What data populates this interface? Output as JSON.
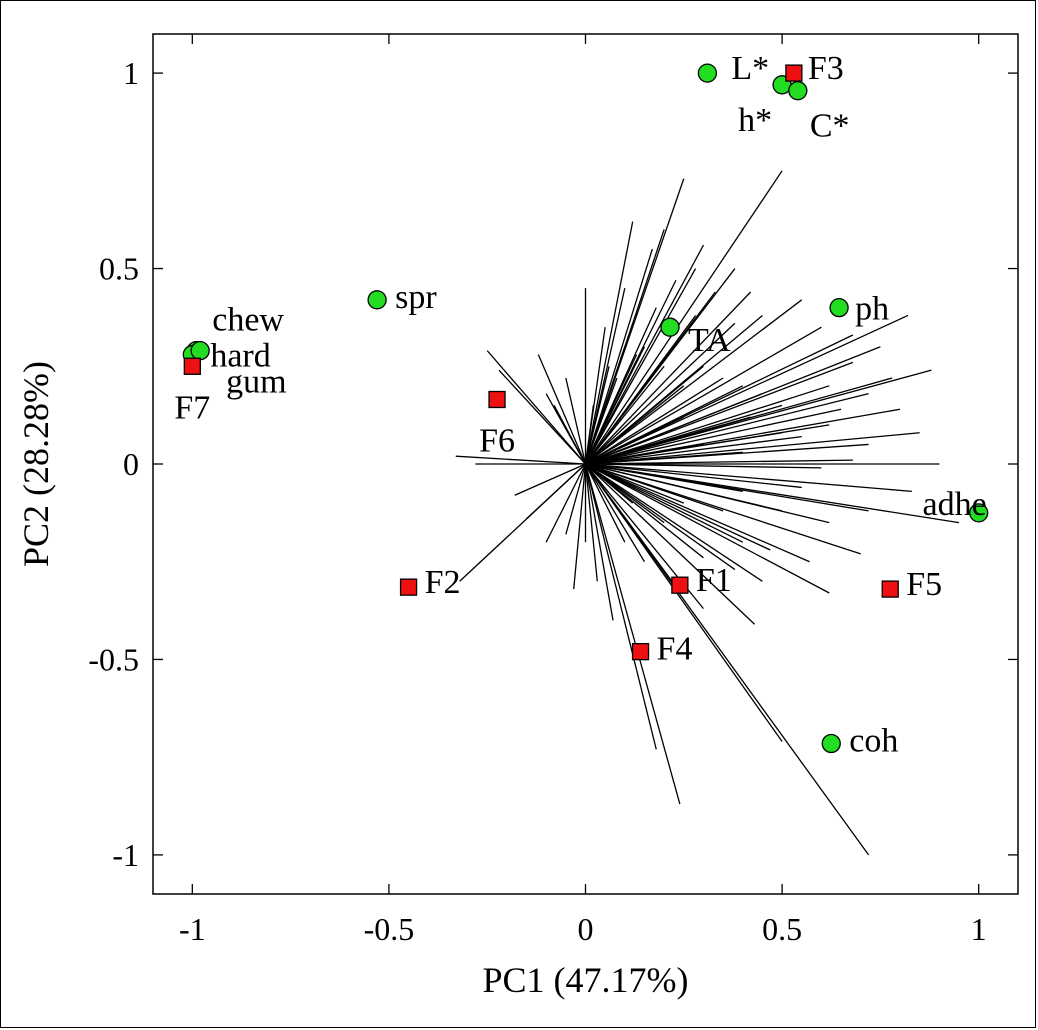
{
  "chart_data": {
    "type": "scatter",
    "title": "",
    "xlabel": "PC1 (47.17%)",
    "ylabel": "PC2 (28.28%)",
    "xlim": [
      -1.1,
      1.1
    ],
    "ylim": [
      -1.1,
      1.1
    ],
    "x_ticks": [
      -1,
      -0.5,
      0,
      0.5,
      1
    ],
    "x_tick_labels": [
      "-1",
      "-0.5",
      "0",
      "0.5",
      "1"
    ],
    "y_ticks": [
      -1,
      -0.5,
      0,
      0.5,
      1
    ],
    "y_tick_labels": [
      "-1",
      "-0.5",
      "0",
      "0.5",
      "1"
    ],
    "grid": false,
    "colors": {
      "variables": "#22dd22",
      "samples": "#ee1111",
      "loadings": "#000000"
    },
    "variables": [
      {
        "label": "L*",
        "x": 0.31,
        "y": 1.0
      },
      {
        "label": "h*",
        "x": 0.5,
        "y": 0.97
      },
      {
        "label": "C*",
        "x": 0.54,
        "y": 0.955
      },
      {
        "label": "ph",
        "x": 0.645,
        "y": 0.4
      },
      {
        "label": "TA",
        "x": 0.215,
        "y": 0.35
      },
      {
        "label": "spr",
        "x": -0.53,
        "y": 0.42
      },
      {
        "label": "chew",
        "x": -0.99,
        "y": 0.29
      },
      {
        "label": "hard",
        "x": -1.0,
        "y": 0.28
      },
      {
        "label": "gum",
        "x": -0.98,
        "y": 0.29
      },
      {
        "label": "adhe",
        "x": 1.0,
        "y": -0.125
      },
      {
        "label": "coh",
        "x": 0.625,
        "y": -0.715
      }
    ],
    "samples": [
      {
        "label": "F1",
        "x": 0.24,
        "y": -0.31
      },
      {
        "label": "F2",
        "x": -0.45,
        "y": -0.315
      },
      {
        "label": "F3",
        "x": 0.53,
        "y": 1.0
      },
      {
        "label": "F4",
        "x": 0.14,
        "y": -0.48
      },
      {
        "label": "F5",
        "x": 0.775,
        "y": -0.32
      },
      {
        "label": "F6",
        "x": -0.225,
        "y": 0.165
      },
      {
        "label": "F7",
        "x": -1.0,
        "y": 0.25
      }
    ],
    "loadings": [
      [
        0.25,
        0.73
      ],
      [
        0.5,
        0.75
      ],
      [
        0.2,
        0.6
      ],
      [
        0.17,
        0.55
      ],
      [
        0.12,
        0.62
      ],
      [
        0.3,
        0.56
      ],
      [
        0.38,
        0.5
      ],
      [
        0.28,
        0.5
      ],
      [
        0.1,
        0.45
      ],
      [
        0.23,
        0.47
      ],
      [
        0.33,
        0.44
      ],
      [
        0.42,
        0.44
      ],
      [
        0.18,
        0.4
      ],
      [
        0.05,
        0.35
      ],
      [
        0.0,
        0.45
      ],
      [
        0.28,
        0.38
      ],
      [
        0.38,
        0.36
      ],
      [
        0.45,
        0.38
      ],
      [
        0.55,
        0.42
      ],
      [
        0.6,
        0.35
      ],
      [
        0.68,
        0.33
      ],
      [
        0.82,
        0.38
      ],
      [
        0.75,
        0.3
      ],
      [
        0.68,
        0.26
      ],
      [
        0.78,
        0.22
      ],
      [
        0.88,
        0.24
      ],
      [
        0.62,
        0.2
      ],
      [
        0.72,
        0.18
      ],
      [
        0.65,
        0.14
      ],
      [
        0.8,
        0.14
      ],
      [
        0.85,
        0.08
      ],
      [
        0.62,
        0.1
      ],
      [
        0.55,
        0.07
      ],
      [
        0.72,
        0.05
      ],
      [
        0.68,
        0.01
      ],
      [
        0.9,
        0.0
      ],
      [
        0.6,
        -0.01
      ],
      [
        0.83,
        -0.07
      ],
      [
        0.95,
        -0.15
      ],
      [
        0.55,
        -0.06
      ],
      [
        0.72,
        -0.12
      ],
      [
        0.62,
        -0.15
      ],
      [
        0.5,
        -0.12
      ],
      [
        0.7,
        -0.23
      ],
      [
        0.57,
        -0.25
      ],
      [
        0.47,
        -0.22
      ],
      [
        0.4,
        -0.2
      ],
      [
        0.62,
        -0.33
      ],
      [
        0.45,
        -0.3
      ],
      [
        0.38,
        -0.27
      ],
      [
        0.3,
        -0.24
      ],
      [
        0.43,
        -0.41
      ],
      [
        0.3,
        -0.37
      ],
      [
        0.22,
        -0.3
      ],
      [
        0.15,
        -0.25
      ],
      [
        0.1,
        -0.2
      ],
      [
        0.72,
        -1.0
      ],
      [
        0.5,
        -0.71
      ],
      [
        0.24,
        -0.87
      ],
      [
        0.18,
        -0.73
      ],
      [
        0.07,
        -0.4
      ],
      [
        0.03,
        -0.3
      ],
      [
        -0.0,
        -0.2
      ],
      [
        -0.03,
        -0.32
      ],
      [
        -0.05,
        -0.18
      ],
      [
        -0.1,
        -0.2
      ],
      [
        -0.15,
        -0.14
      ],
      [
        -0.18,
        -0.08
      ],
      [
        -0.32,
        -0.3
      ],
      [
        -0.28,
        0.0
      ],
      [
        -0.33,
        0.02
      ],
      [
        -0.25,
        0.29
      ],
      [
        -0.22,
        0.24
      ],
      [
        -0.12,
        0.28
      ],
      [
        -0.1,
        0.18
      ],
      [
        -0.05,
        0.22
      ],
      [
        -0.08,
        0.15
      ],
      [
        0.02,
        0.15
      ],
      [
        0.06,
        0.25
      ],
      [
        0.08,
        0.22
      ],
      [
        0.1,
        0.3
      ],
      [
        0.13,
        0.28
      ],
      [
        0.15,
        0.3
      ],
      [
        0.2,
        0.25
      ],
      [
        0.25,
        0.2
      ],
      [
        0.3,
        0.25
      ],
      [
        0.35,
        0.22
      ],
      [
        0.4,
        0.2
      ],
      [
        0.45,
        0.18
      ],
      [
        0.5,
        0.15
      ],
      [
        0.25,
        0.12
      ],
      [
        0.35,
        0.1
      ],
      [
        0.42,
        0.12
      ],
      [
        0.5,
        0.08
      ],
      [
        0.3,
        0.05
      ],
      [
        0.4,
        0.03
      ],
      [
        0.3,
        -0.05
      ],
      [
        0.4,
        -0.07
      ],
      [
        0.35,
        -0.12
      ],
      [
        0.25,
        -0.1
      ],
      [
        0.2,
        -0.15
      ],
      [
        0.12,
        -0.1
      ]
    ]
  }
}
